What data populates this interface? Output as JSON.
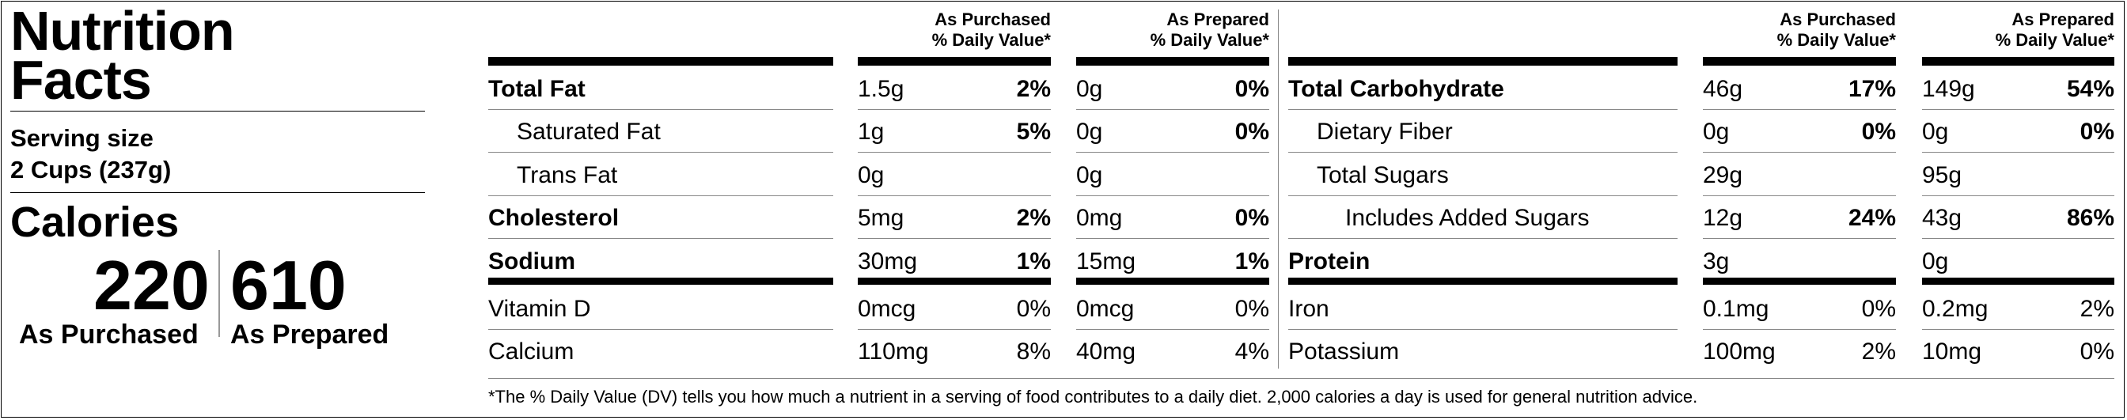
{
  "title": "Nutrition Facts",
  "serving": {
    "label": "Serving size",
    "value": "2 Cups (237g)"
  },
  "calories": {
    "label": "Calories",
    "purchased": {
      "value": "220",
      "label": "As Purchased"
    },
    "prepared": {
      "value": "610",
      "label": "As Prepared"
    }
  },
  "column_headers": {
    "purchased": [
      "As Purchased",
      "% Daily Value*"
    ],
    "prepared": [
      "As Prepared",
      "% Daily Value*"
    ]
  },
  "left_rows": [
    {
      "name": "Total Fat",
      "bold": true,
      "indent": 0,
      "p_amt": "1.5g",
      "p_dv": "2%",
      "r_amt": "0g",
      "r_dv": "0%",
      "dv_bold": true
    },
    {
      "name": "Saturated Fat",
      "bold": false,
      "indent": 1,
      "p_amt": "1g",
      "p_dv": "5%",
      "r_amt": "0g",
      "r_dv": "0%",
      "dv_bold": true
    },
    {
      "name": "Trans Fat",
      "bold": false,
      "indent": 1,
      "p_amt": "0g",
      "p_dv": "",
      "r_amt": "0g",
      "r_dv": "",
      "dv_bold": true
    },
    {
      "name": "Cholesterol",
      "bold": true,
      "indent": 0,
      "p_amt": "5mg",
      "p_dv": "2%",
      "r_amt": "0mg",
      "r_dv": "0%",
      "dv_bold": true
    },
    {
      "name": "Sodium",
      "bold": true,
      "indent": 0,
      "p_amt": "30mg",
      "p_dv": "1%",
      "r_amt": "15mg",
      "r_dv": "1%",
      "dv_bold": true
    },
    {
      "name": "Vitamin D",
      "bold": false,
      "indent": 0,
      "p_amt": "0mcg",
      "p_dv": "0%",
      "r_amt": "0mcg",
      "r_dv": "0%",
      "dv_bold": false
    },
    {
      "name": "Calcium",
      "bold": false,
      "indent": 0,
      "p_amt": "110mg",
      "p_dv": "8%",
      "r_amt": "40mg",
      "r_dv": "4%",
      "dv_bold": false
    }
  ],
  "right_rows": [
    {
      "name": "Total Carbohydrate",
      "bold": true,
      "indent": 0,
      "p_amt": "46g",
      "p_dv": "17%",
      "r_amt": "149g",
      "r_dv": "54%",
      "dv_bold": true
    },
    {
      "name": "Dietary Fiber",
      "bold": false,
      "indent": 1,
      "p_amt": "0g",
      "p_dv": "0%",
      "r_amt": "0g",
      "r_dv": "0%",
      "dv_bold": true
    },
    {
      "name": "Total Sugars",
      "bold": false,
      "indent": 1,
      "p_amt": "29g",
      "p_dv": "",
      "r_amt": "95g",
      "r_dv": "",
      "dv_bold": true
    },
    {
      "name": "Includes Added Sugars",
      "bold": false,
      "indent": 2,
      "p_amt": "12g",
      "p_dv": "24%",
      "r_amt": "43g",
      "r_dv": "86%",
      "dv_bold": true
    },
    {
      "name": "Protein",
      "bold": true,
      "indent": 0,
      "p_amt": "3g",
      "p_dv": "",
      "r_amt": "0g",
      "r_dv": "",
      "dv_bold": true
    },
    {
      "name": "Iron",
      "bold": false,
      "indent": 0,
      "p_amt": "0.1mg",
      "p_dv": "0%",
      "r_amt": "0.2mg",
      "r_dv": "2%",
      "dv_bold": false
    },
    {
      "name": "Potassium",
      "bold": false,
      "indent": 0,
      "p_amt": "100mg",
      "p_dv": "2%",
      "r_amt": "10mg",
      "r_dv": "0%",
      "dv_bold": false
    }
  ],
  "footnote": "*The % Daily Value (DV) tells you how much a nutrient in a serving of food contributes to a daily diet. 2,000 calories a day is used for general nutrition advice."
}
